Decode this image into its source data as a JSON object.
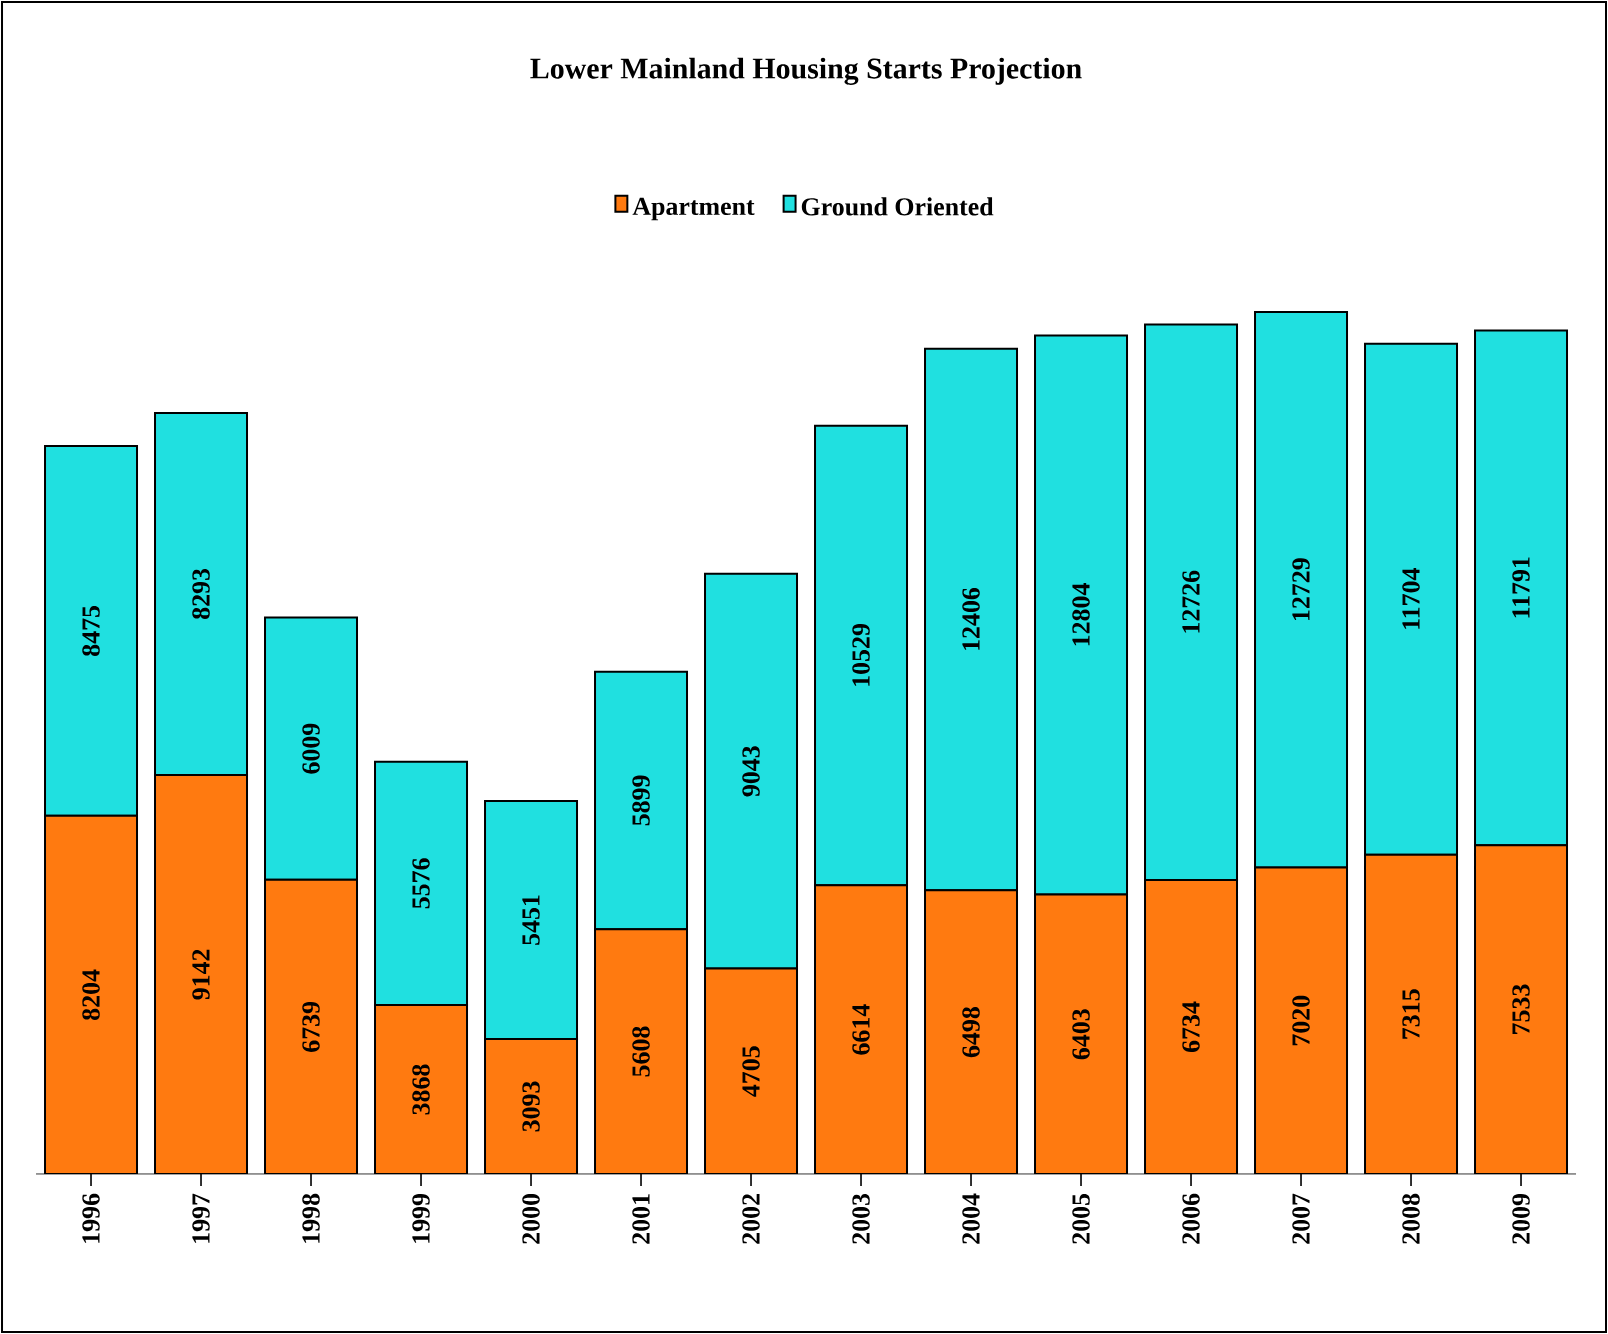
{
  "chart_data": {
    "type": "bar",
    "title": "Lower Mainland Housing Starts Projection",
    "stacked": true,
    "data_labels": true,
    "legend": "top",
    "categories": [
      "1996",
      "1997",
      "1998",
      "1999",
      "2000",
      "2001",
      "2002",
      "2003",
      "2004",
      "2005",
      "2006",
      "2007",
      "2008",
      "2009"
    ],
    "series": [
      {
        "name": "Apartment",
        "color": "#ff7a10",
        "values": [
          8204,
          9142,
          6739,
          3868,
          3093,
          5608,
          4705,
          6614,
          6498,
          6403,
          6734,
          7020,
          7315,
          7533
        ]
      },
      {
        "name": "Ground Oriented",
        "color": "#20e0e0",
        "values": [
          8475,
          8293,
          6009,
          5576,
          5451,
          5899,
          9043,
          10529,
          12406,
          12804,
          12726,
          12729,
          11704,
          11791
        ]
      }
    ]
  }
}
